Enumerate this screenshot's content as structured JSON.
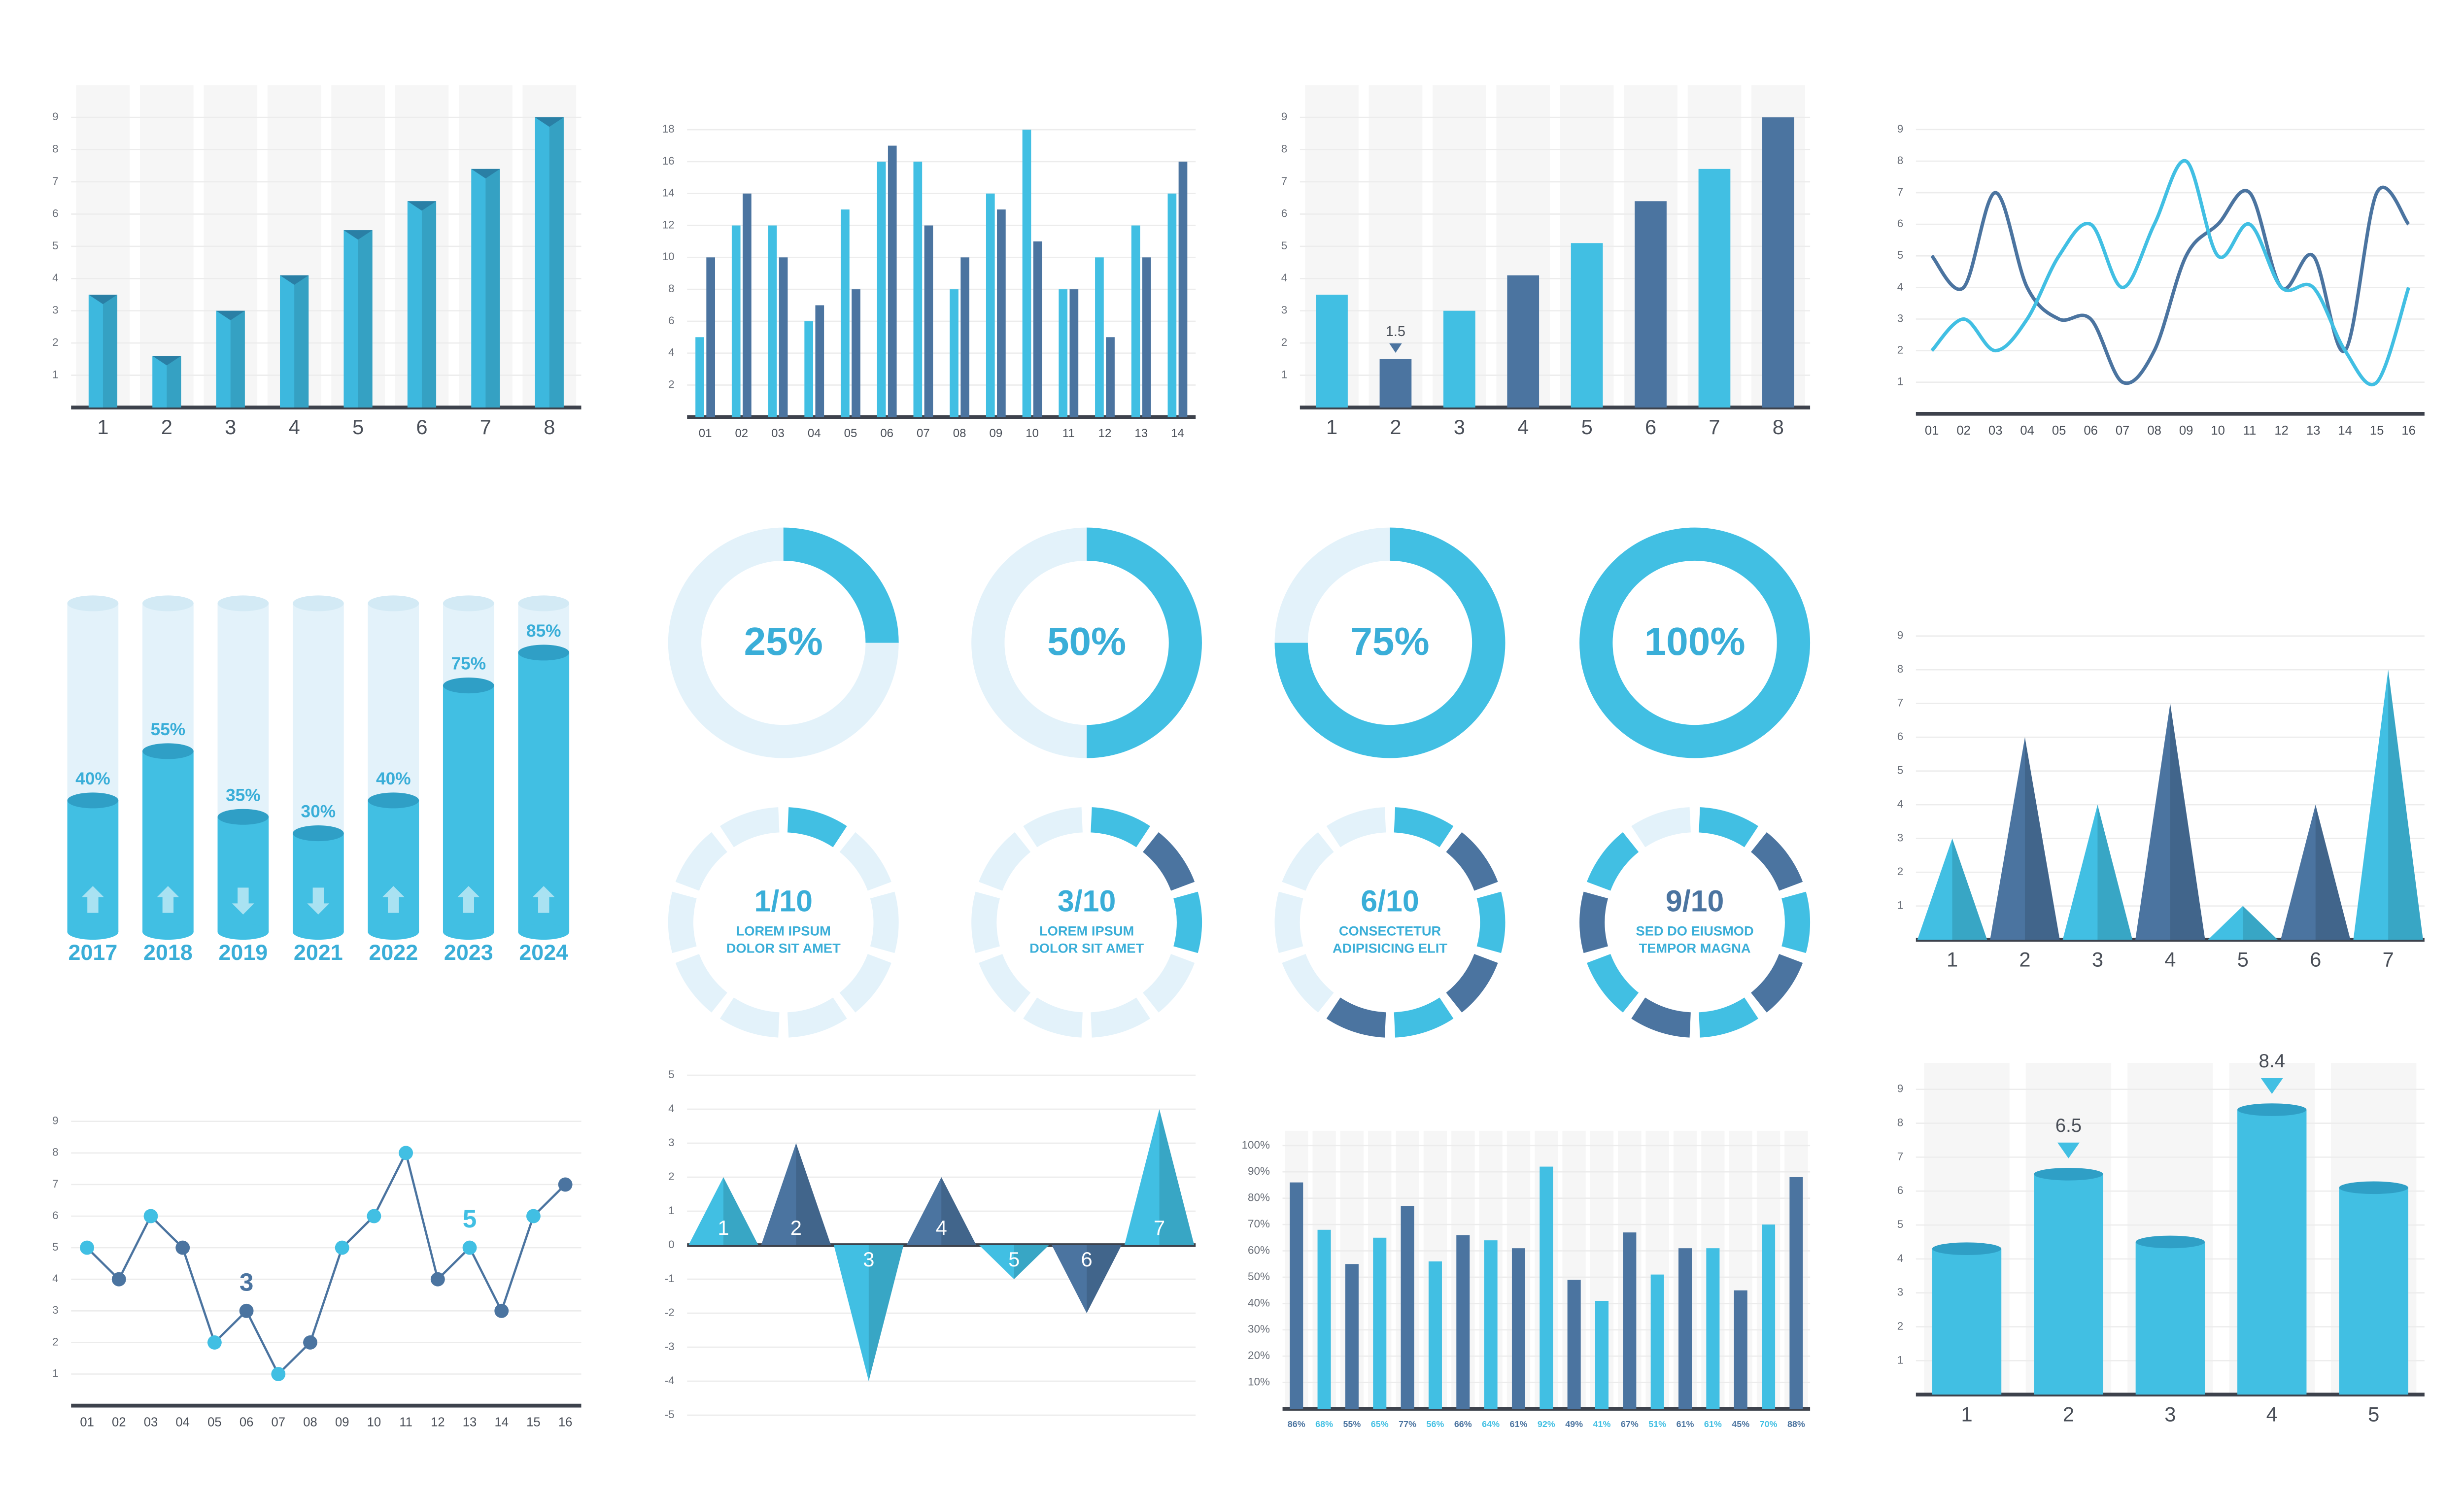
{
  "chart_data": [
    {
      "type": "bar3d",
      "categories": [
        "1",
        "2",
        "3",
        "4",
        "5",
        "6",
        "7",
        "8"
      ],
      "values": [
        3.5,
        1.6,
        3,
        4.1,
        5.5,
        6.4,
        7.4,
        9
      ],
      "color": "#3db8de",
      "ylim": [
        0,
        9.7
      ],
      "yticks": [
        1,
        2,
        3,
        4,
        5,
        6,
        7,
        8,
        9
      ],
      "grid": true,
      "background_bands": true
    },
    {
      "type": "grouped_bar",
      "categories": [
        "01",
        "02",
        "03",
        "04",
        "05",
        "06",
        "07",
        "08",
        "09",
        "10",
        "11",
        "12",
        "13",
        "14"
      ],
      "series": [
        {
          "color": "#41bfe3",
          "values": [
            5,
            12,
            12,
            6,
            13,
            16,
            16,
            8,
            14,
            18,
            8,
            10,
            12,
            14
          ]
        },
        {
          "color": "#4b74a0",
          "values": [
            10,
            14,
            10,
            7,
            8,
            17,
            12,
            10,
            13,
            11,
            8,
            5,
            10,
            16
          ]
        }
      ],
      "ylim": [
        0,
        19
      ],
      "yticks": [
        2,
        4,
        6,
        8,
        10,
        12,
        14,
        16,
        18
      ],
      "grid": true
    },
    {
      "type": "bar",
      "categories": [
        "1",
        "2",
        "3",
        "4",
        "5",
        "6",
        "7",
        "8"
      ],
      "values": [
        3.5,
        1.5,
        3,
        4.1,
        5.1,
        6.4,
        7.4,
        9
      ],
      "value_labels": [
        null,
        "1.5",
        null,
        null,
        null,
        null,
        null,
        null
      ],
      "colors": [
        "#41bfe3",
        "#4b74a0",
        "#41bfe3",
        "#4b74a0",
        "#41bfe3",
        "#4b74a0",
        "#41bfe3",
        "#4b74a0"
      ],
      "ylim": [
        0,
        9.7
      ],
      "yticks": [
        1,
        2,
        3,
        4,
        5,
        6,
        7,
        8,
        9
      ],
      "grid": true,
      "background_bands": true
    },
    {
      "type": "smooth_line",
      "categories": [
        "01",
        "02",
        "03",
        "04",
        "05",
        "06",
        "07",
        "08",
        "09",
        "10",
        "11",
        "12",
        "13",
        "14",
        "15",
        "16"
      ],
      "series": [
        {
          "color": "#4b74a0",
          "values": [
            5,
            4,
            7,
            4,
            3,
            3,
            1,
            2,
            5,
            6,
            7,
            4,
            5,
            2,
            7,
            6
          ]
        },
        {
          "color": "#41bfe3",
          "values": [
            2,
            3,
            2,
            3,
            5,
            6,
            4,
            6,
            8,
            5,
            6,
            4,
            4,
            2,
            1,
            4
          ]
        }
      ],
      "ylim": [
        0,
        9.8
      ],
      "yticks": [
        1,
        2,
        3,
        4,
        5,
        6,
        7,
        8,
        9
      ],
      "grid": true
    },
    {
      "type": "cylinder_percent",
      "categories": [
        "2017",
        "2018",
        "2019",
        "2021",
        "2022",
        "2023",
        "2024"
      ],
      "values": [
        40,
        55,
        35,
        30,
        40,
        75,
        85
      ],
      "value_labels": [
        "40%",
        "55%",
        "35%",
        "30%",
        "40%",
        "75%",
        "85%"
      ],
      "color": "#41bfe3",
      "ylim": [
        0,
        100
      ]
    },
    {
      "type": "donut",
      "values": [
        25,
        50,
        75,
        100
      ],
      "value_labels": [
        "25%",
        "50%",
        "75%",
        "100%"
      ],
      "color": "#41bfe3"
    },
    {
      "type": "segment_ring",
      "items": [
        {
          "value": 1,
          "total": 10,
          "label": "1/10",
          "text": [
            "LOREM IPSUM",
            "DOLOR SIT AMET"
          ]
        },
        {
          "value": 3,
          "total": 10,
          "label": "3/10",
          "text": [
            "LOREM IPSUM",
            "DOLOR SIT AMET"
          ]
        },
        {
          "value": 6,
          "total": 10,
          "label": "6/10",
          "text": [
            "CONSECTETUR",
            "ADIPISICING ELIT"
          ]
        },
        {
          "value": 9,
          "total": 10,
          "label": "9/10",
          "text": [
            "SED DO EIUSMOD",
            "TEMPOR MAGNA"
          ]
        }
      ],
      "colors": [
        "#41bfe3",
        "#4b74a0"
      ]
    },
    {
      "type": "pyramid",
      "categories": [
        "1",
        "2",
        "3",
        "4",
        "5",
        "6",
        "7"
      ],
      "values": [
        3,
        6,
        4,
        7,
        1,
        4,
        8
      ],
      "colors": [
        "#41bfe3",
        "#4b74a0",
        "#41bfe3",
        "#4b74a0",
        "#41bfe3",
        "#4b74a0",
        "#41bfe3"
      ],
      "ylim": [
        0,
        9.5
      ],
      "yticks": [
        1,
        2,
        3,
        4,
        5,
        6,
        7,
        8,
        9
      ],
      "grid": true
    },
    {
      "type": "marker_line",
      "categories": [
        "01",
        "02",
        "03",
        "04",
        "05",
        "06",
        "07",
        "08",
        "09",
        "10",
        "11",
        "12",
        "13",
        "14",
        "15",
        "16"
      ],
      "values": [
        5,
        4,
        6,
        5,
        2,
        3,
        1,
        2,
        5,
        6,
        8,
        4,
        5,
        3,
        6,
        7
      ],
      "value_labels": [
        null,
        null,
        null,
        null,
        null,
        "3",
        null,
        null,
        null,
        null,
        null,
        null,
        "5",
        null,
        null,
        null
      ],
      "colors": [
        "#41bfe3",
        "#4b74a0",
        "#41bfe3",
        "#4b74a0",
        "#41bfe3",
        "#4b74a0",
        "#41bfe3",
        "#4b74a0",
        "#41bfe3",
        "#41bfe3",
        "#41bfe3",
        "#4b74a0",
        "#41bfe3",
        "#4b74a0",
        "#41bfe3",
        "#4b74a0"
      ],
      "line_color": "#4b74a0",
      "ylim": [
        0,
        9.8
      ],
      "yticks": [
        1,
        2,
        3,
        4,
        5,
        6,
        7,
        8,
        9
      ],
      "grid": true
    },
    {
      "type": "pyramid",
      "categories": [
        "1",
        "2",
        "3",
        "4",
        "5",
        "6",
        "7"
      ],
      "values": [
        2,
        3,
        -4,
        2,
        -1,
        -2,
        4
      ],
      "colors": [
        "#41bfe3",
        "#4b74a0",
        "#41bfe3",
        "#4b74a0",
        "#41bfe3",
        "#4b74a0",
        "#41bfe3"
      ],
      "ylim": [
        -5,
        5.5
      ],
      "yticks": [
        -5,
        -4,
        -3,
        -2,
        -1,
        0,
        1,
        2,
        3,
        4,
        5
      ],
      "grid": true,
      "labels_inside": true
    },
    {
      "type": "bar",
      "values": [
        86,
        68,
        55,
        65,
        77,
        56,
        66,
        64,
        61,
        92,
        49,
        41,
        67,
        51,
        61,
        61,
        45,
        70,
        88
      ],
      "value_labels": [
        "86%",
        "68%",
        "55%",
        "65%",
        "77%",
        "56%",
        "66%",
        "64%",
        "61%",
        "92%",
        "49%",
        "41%",
        "67%",
        "51%",
        "61%",
        "61%",
        "45%",
        "70%",
        "88%"
      ],
      "value_label_position": "bottom",
      "colors": [
        "#4b74a0",
        "#41bfe3",
        "#4b74a0",
        "#41bfe3",
        "#4b74a0",
        "#41bfe3",
        "#4b74a0",
        "#41bfe3",
        "#4b74a0",
        "#41bfe3",
        "#4b74a0",
        "#41bfe3",
        "#4b74a0",
        "#41bfe3",
        "#4b74a0",
        "#41bfe3",
        "#4b74a0",
        "#41bfe3",
        "#4b74a0"
      ],
      "ylim": [
        0,
        102
      ],
      "yticks": [
        {
          "value": 10,
          "label": "10%"
        },
        {
          "value": 20,
          "label": "20%"
        },
        {
          "value": 30,
          "label": "30%"
        },
        {
          "value": 40,
          "label": "40%"
        },
        {
          "value": 50,
          "label": "50%"
        },
        {
          "value": 60,
          "label": "60%"
        },
        {
          "value": 70,
          "label": "70%"
        },
        {
          "value": 80,
          "label": "80%"
        },
        {
          "value": 90,
          "label": "90%"
        },
        {
          "value": 100,
          "label": "100%"
        }
      ],
      "grid": true,
      "background_bands": true
    },
    {
      "type": "cylinder_bar",
      "categories": [
        "1",
        "2",
        "3",
        "4",
        "5"
      ],
      "values": [
        4.3,
        6.5,
        4.5,
        8.4,
        6.1
      ],
      "value_labels": [
        null,
        "6.5",
        null,
        "8.4",
        null
      ],
      "color": "#41bfe3",
      "ylim": [
        0,
        9.5
      ],
      "yticks": [
        1,
        2,
        3,
        4,
        5,
        6,
        7,
        8,
        9
      ],
      "grid": true,
      "background_bands": true
    }
  ]
}
